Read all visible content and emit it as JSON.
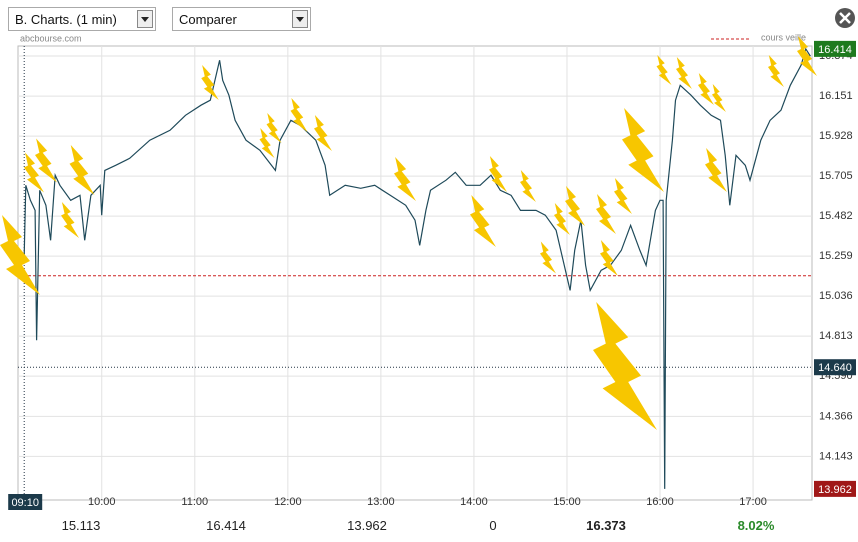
{
  "toolbar": {
    "period": "B. Charts. (1 min)",
    "compare": "Comparer",
    "source": "abcbourse.com"
  },
  "chart_data": {
    "type": "line",
    "color": "#1f4a5a",
    "x": [
      550,
      551,
      554,
      557,
      558,
      560,
      564,
      567,
      570,
      573,
      580,
      586,
      589,
      593,
      599,
      600,
      602,
      609,
      618,
      631,
      644,
      654,
      664,
      670,
      676,
      678,
      682,
      686,
      693,
      702,
      712,
      715,
      722,
      728,
      738,
      744,
      747,
      757,
      767,
      776,
      786,
      796,
      802,
      805,
      809,
      812,
      822,
      828,
      835,
      844,
      851,
      857,
      864,
      870,
      880,
      886,
      893,
      899,
      902,
      905,
      909,
      912,
      915,
      922,
      928,
      935,
      941,
      947,
      951,
      957,
      960,
      962,
      963,
      964,
      968,
      970,
      973,
      980,
      986,
      993,
      999,
      1002,
      1005,
      1009,
      1015,
      1018,
      1025,
      1031,
      1038,
      1044,
      1051,
      1054,
      1057
    ],
    "values": [
      15.264,
      15.654,
      15.57,
      15.514,
      14.79,
      15.626,
      15.542,
      15.347,
      15.71,
      15.654,
      15.57,
      15.598,
      15.347,
      15.598,
      15.654,
      15.487,
      15.737,
      15.765,
      15.804,
      15.905,
      15.96,
      16.044,
      16.1,
      16.128,
      16.351,
      16.239,
      16.156,
      16.016,
      15.905,
      15.849,
      15.737,
      15.905,
      16.016,
      15.988,
      15.905,
      15.765,
      15.598,
      15.654,
      15.637,
      15.654,
      15.598,
      15.542,
      15.459,
      15.319,
      15.514,
      15.626,
      15.682,
      15.726,
      15.654,
      15.654,
      15.71,
      15.626,
      15.598,
      15.514,
      15.514,
      15.487,
      15.403,
      15.18,
      15.068,
      15.291,
      15.459,
      15.208,
      15.068,
      15.18,
      15.208,
      15.291,
      15.431,
      15.291,
      15.208,
      15.514,
      15.57,
      15.57,
      13.962,
      15.57,
      15.905,
      16.128,
      16.211,
      16.156,
      16.1,
      16.044,
      16.016,
      15.821,
      15.542,
      15.821,
      15.765,
      15.682,
      15.905,
      16.016,
      16.072,
      16.211,
      16.323,
      16.414,
      16.373
    ],
    "xlim": [
      546,
      1058
    ],
    "xticks": [
      {
        "value": 600,
        "label": "10:00"
      },
      {
        "value": 660,
        "label": "11:00"
      },
      {
        "value": 720,
        "label": "12:00"
      },
      {
        "value": 780,
        "label": "13:00"
      },
      {
        "value": 840,
        "label": "14:00"
      },
      {
        "value": 900,
        "label": "15:00"
      },
      {
        "value": 960,
        "label": "16:00"
      },
      {
        "value": 1020,
        "label": "17:00"
      }
    ],
    "ylim": [
      13.9,
      16.43
    ],
    "yticks": [
      14.143,
      14.366,
      {
        "value": 14.59,
        "label": "14.590"
      },
      14.813,
      15.036,
      15.259,
      15.482,
      15.705,
      15.928,
      16.151,
      16.374
    ],
    "grid": true,
    "reference_line": {
      "label": "cours veille",
      "value": 15.15,
      "color": "#cc2222"
    },
    "markers": [
      {
        "value": 16.414,
        "label": "16.414",
        "color": "#1e7a1e"
      },
      {
        "value": 13.962,
        "label": "13.962",
        "color": "#a01818"
      }
    ],
    "crosshair": {
      "x": {
        "value": 550,
        "label": "09:10"
      },
      "y": {
        "value": 14.64,
        "label": "14.640"
      }
    }
  },
  "footer": [
    "15.113",
    "16.414",
    "13.962",
    "0",
    "16.373",
    "8.02%"
  ]
}
